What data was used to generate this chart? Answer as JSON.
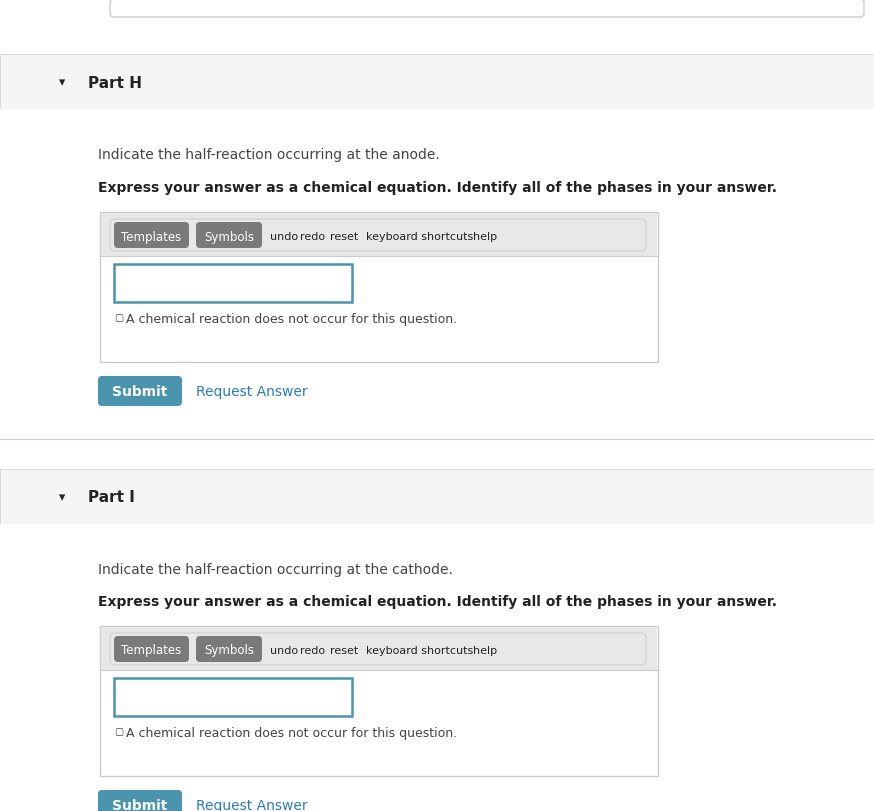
{
  "bg_color": "#ffffff",
  "white": "#ffffff",
  "section_bg": "#f5f5f5",
  "outer_bg": "#ffffff",
  "border_color": "#cccccc",
  "teal_btn": "#4a94ae",
  "teal_btn_text": "#ffffff",
  "link_color": "#2b7bb9",
  "dark_text": "#222222",
  "medium_text": "#444444",
  "toolbar_btn_bg": "#7a7a7a",
  "toolbar_btn_text": "#ffffff",
  "input_border": "#4a94ae",
  "top_bar_color": "#d8d8d8",
  "toolbar_bg": "#e8e8e8",
  "part_h_label": "Part H",
  "part_h_desc": "Indicate the half-reaction occurring at the anode.",
  "part_h_instruction": "Express your answer as a chemical equation. Identify all of the phases in your answer.",
  "part_i_label": "Part I",
  "part_i_desc": "Indicate the half-reaction occurring at the cathode.",
  "part_i_instruction": "Express your answer as a chemical equation. Identify all of the phases in your answer.",
  "checkbox_label": "A chemical reaction does not occur for this question.",
  "submit_label": "Submit",
  "request_answer_label": "Request Answer",
  "fig_width": 8.74,
  "fig_height": 8.12,
  "dpi": 100
}
